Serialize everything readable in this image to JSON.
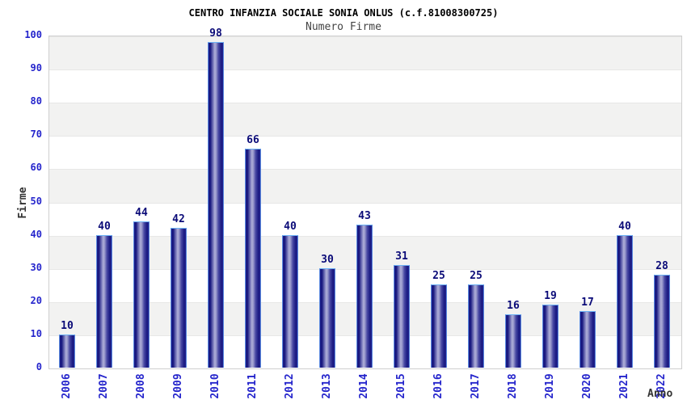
{
  "chart_data": {
    "type": "bar",
    "title": "CENTRO INFANZIA SOCIALE SONIA ONLUS (c.f.81008300725)",
    "subtitle": "Numero Firme",
    "xlabel": "Anno",
    "ylabel": "Firme",
    "categories": [
      "2006",
      "2007",
      "2008",
      "2009",
      "2010",
      "2011",
      "2012",
      "2013",
      "2014",
      "2015",
      "2016",
      "2017",
      "2018",
      "2019",
      "2020",
      "2021",
      "2022"
    ],
    "values": [
      10,
      40,
      44,
      42,
      98,
      66,
      40,
      30,
      43,
      31,
      25,
      25,
      16,
      19,
      17,
      40,
      28
    ],
    "ylim": [
      0,
      100
    ],
    "ytick_step": 10,
    "yticks": [
      0,
      10,
      20,
      30,
      40,
      50,
      60,
      70,
      80,
      90,
      100
    ],
    "legend_position": "none",
    "grid": "horizontal-bands-alternating",
    "colors": {
      "band_alt": "#f2f2f1",
      "band_base": "#ffffff",
      "plot_border": "#cfcfcf",
      "gridline": "#e7e7e6",
      "axis_tick_text": "#2525cc",
      "value_label_text": "#0b0b78",
      "title_text": "#000000",
      "subtitle_text": "#444444",
      "axis_title_text": "#333333",
      "bar_edge": "#5a8ae0",
      "bar_edge_top": "#6cb2f5",
      "bar_gradient": [
        "#1e1e88",
        "#15157d",
        "#7d7dbd",
        "#aeaed8",
        "#9a9acc",
        "#4a4aa4",
        "#1a1a82",
        "#23238c"
      ]
    }
  }
}
